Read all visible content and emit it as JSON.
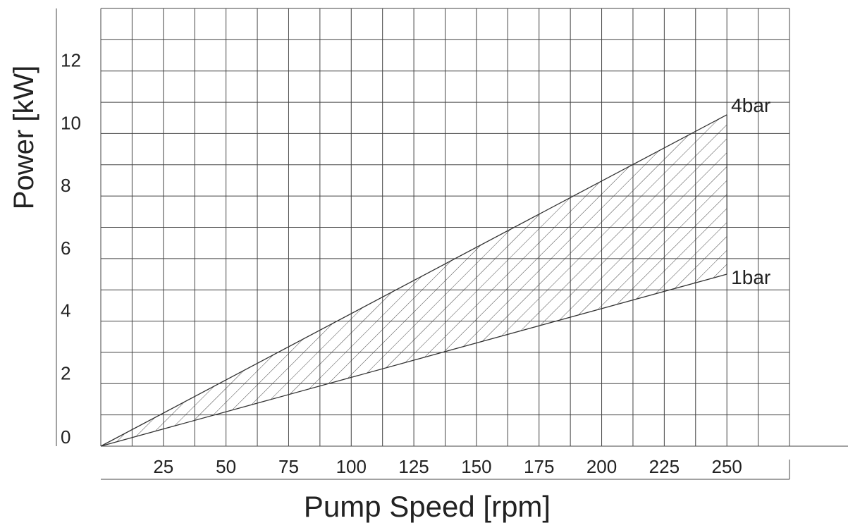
{
  "chart_data": {
    "type": "area",
    "title": "",
    "xlabel": "Pump Speed [rpm]",
    "ylabel": "Power [kW]",
    "xlim": [
      0,
      275
    ],
    "ylim": [
      0,
      14
    ],
    "x_ticks": [
      {
        "value": 25,
        "label": "25"
      },
      {
        "value": 50,
        "label": "50"
      },
      {
        "value": 75,
        "label": "75"
      },
      {
        "value": 100,
        "label": "100"
      },
      {
        "value": 125,
        "label": "125"
      },
      {
        "value": 150,
        "label": "150"
      },
      {
        "value": 175,
        "label": "175"
      },
      {
        "value": 200,
        "label": "200"
      },
      {
        "value": 225,
        "label": "225"
      },
      {
        "value": 250,
        "label": "250"
      }
    ],
    "y_ticks": [
      {
        "value": 0,
        "label": "0"
      },
      {
        "value": 2,
        "label": "2"
      },
      {
        "value": 4,
        "label": "4"
      },
      {
        "value": 6,
        "label": "6"
      },
      {
        "value": 8,
        "label": "8"
      },
      {
        "value": 10,
        "label": "10"
      },
      {
        "value": 12,
        "label": "12"
      }
    ],
    "grid": true,
    "grid_x_step": 12.5,
    "grid_y_step": 1,
    "series": [
      {
        "name": "4bar",
        "x": [
          0,
          250
        ],
        "y": [
          0,
          10.6
        ]
      },
      {
        "name": "1bar",
        "x": [
          0,
          250
        ],
        "y": [
          0,
          5.5
        ]
      }
    ],
    "fill_between": {
      "upper": "4bar",
      "lower": "1bar",
      "pattern": "hatch"
    },
    "colors": {
      "line": "#333333",
      "grid": "#444444",
      "hatch": "#333333"
    }
  }
}
